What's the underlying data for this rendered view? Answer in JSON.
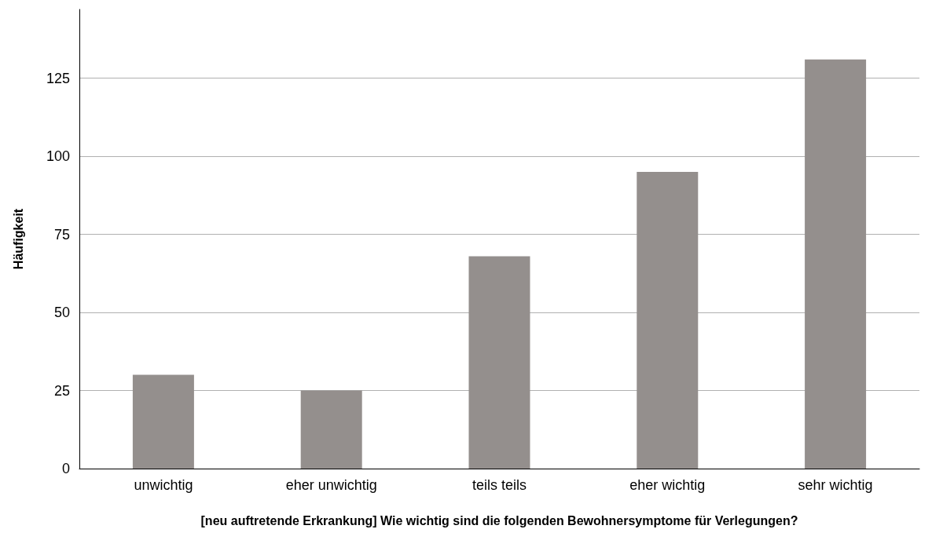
{
  "chart_data": {
    "type": "bar",
    "xlabel": "[neu auftretende Erkrankung] Wie wichtig sind die folgenden Bewohnersymptome für Verlegungen?",
    "ylabel": "Häufigkeit",
    "categories": [
      "unwichtig",
      "eher unwichtig",
      "teils teils",
      "eher wichtig",
      "sehr wichtig"
    ],
    "values": [
      30,
      25,
      68,
      95,
      131
    ],
    "color": "#948f8d",
    "ylim": [
      0,
      147
    ],
    "yticks": [
      0,
      25,
      50,
      75,
      100,
      125
    ],
    "grid": "y"
  }
}
